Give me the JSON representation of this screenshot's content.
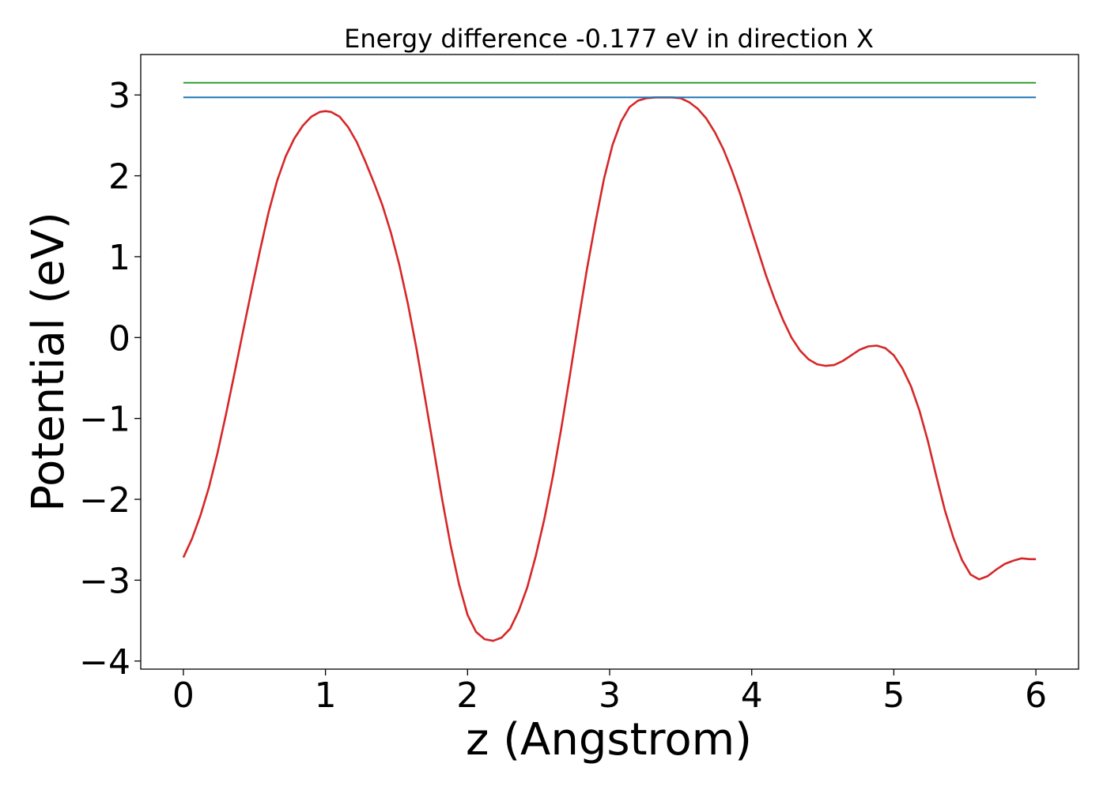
{
  "chart_data": {
    "type": "line",
    "title": "Energy difference -0.177 eV in direction X",
    "xlabel": "z (Angstrom)",
    "ylabel": "Potential (eV)",
    "xlim": [
      -0.3,
      6.3
    ],
    "ylim": [
      -4.1,
      3.5
    ],
    "x_ticks": [
      0,
      1,
      2,
      3,
      4,
      5,
      6
    ],
    "x_tick_labels": [
      "0",
      "1",
      "2",
      "3",
      "4",
      "5",
      "6"
    ],
    "y_ticks": [
      -4,
      -3,
      -2,
      -1,
      0,
      1,
      2,
      3
    ],
    "y_tick_labels": [
      "−4",
      "−3",
      "−2",
      "−1",
      "0",
      "1",
      "2",
      "3"
    ],
    "grid": false,
    "series": [
      {
        "color": "#d62728",
        "x": [
          0,
          0.06,
          0.12,
          0.18,
          0.24,
          0.3,
          0.36,
          0.42,
          0.48,
          0.54,
          0.6,
          0.66,
          0.72,
          0.78,
          0.84,
          0.9,
          0.96,
          1.0,
          1.04,
          1.1,
          1.16,
          1.22,
          1.28,
          1.34,
          1.4,
          1.46,
          1.52,
          1.58,
          1.64,
          1.7,
          1.76,
          1.82,
          1.88,
          1.94,
          2.0,
          2.06,
          2.12,
          2.18,
          2.24,
          2.3,
          2.36,
          2.42,
          2.48,
          2.54,
          2.6,
          2.66,
          2.72,
          2.78,
          2.84,
          2.9,
          2.96,
          3.02,
          3.08,
          3.14,
          3.2,
          3.26,
          3.32,
          3.38,
          3.44,
          3.5,
          3.56,
          3.62,
          3.68,
          3.74,
          3.8,
          3.86,
          3.92,
          3.98,
          4.04,
          4.1,
          4.16,
          4.22,
          4.28,
          4.34,
          4.4,
          4.46,
          4.52,
          4.58,
          4.64,
          4.7,
          4.76,
          4.82,
          4.88,
          4.94,
          5.0,
          5.06,
          5.12,
          5.18,
          5.24,
          5.3,
          5.36,
          5.42,
          5.48,
          5.54,
          5.6,
          5.66,
          5.72,
          5.78,
          5.84,
          5.9,
          5.96,
          6.0
        ],
        "values": [
          -2.72,
          -2.49,
          -2.2,
          -1.85,
          -1.43,
          -0.95,
          -0.44,
          0.08,
          0.59,
          1.08,
          1.55,
          1.94,
          2.24,
          2.46,
          2.62,
          2.73,
          2.79,
          2.8,
          2.79,
          2.73,
          2.6,
          2.42,
          2.18,
          1.92,
          1.64,
          1.3,
          0.9,
          0.42,
          -0.13,
          -0.74,
          -1.36,
          -1.99,
          -2.56,
          -3.05,
          -3.43,
          -3.64,
          -3.73,
          -3.75,
          -3.71,
          -3.6,
          -3.38,
          -3.09,
          -2.7,
          -2.25,
          -1.72,
          -1.12,
          -0.47,
          0.2,
          0.84,
          1.42,
          1.96,
          2.38,
          2.67,
          2.85,
          2.93,
          2.96,
          2.97,
          2.97,
          2.97,
          2.96,
          2.91,
          2.83,
          2.71,
          2.54,
          2.33,
          2.07,
          1.77,
          1.43,
          1.1,
          0.77,
          0.48,
          0.22,
          0.0,
          -0.16,
          -0.27,
          -0.33,
          -0.35,
          -0.34,
          -0.29,
          -0.22,
          -0.15,
          -0.11,
          -0.1,
          -0.13,
          -0.22,
          -0.38,
          -0.6,
          -0.9,
          -1.28,
          -1.72,
          -2.14,
          -2.48,
          -2.75,
          -2.93,
          -2.99,
          -2.95,
          -2.87,
          -2.8,
          -2.76,
          -2.73,
          -2.74,
          -2.74
        ]
      },
      {
        "color": "#1f77b4",
        "x": [
          0,
          6
        ],
        "values": [
          2.97,
          2.97
        ]
      },
      {
        "color": "#2ca02c",
        "x": [
          0,
          6
        ],
        "values": [
          3.15,
          3.15
        ]
      }
    ]
  }
}
